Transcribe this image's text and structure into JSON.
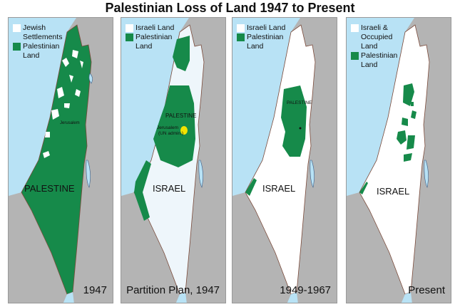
{
  "title": "Palestinian Loss of Land 1947 to Present",
  "colors": {
    "sea": "#b8e2f5",
    "neighbor": "#b4b4b4",
    "green": "#168a4a",
    "white": "#ffffff",
    "israel_1947_plan": "#eef6fb",
    "jerusalem": "#f2e200"
  },
  "panels": [
    {
      "legend": [
        "Jewish Settlements",
        "Palestinian Land"
      ],
      "year": "1947",
      "labels": {
        "country": "PALESTINE",
        "city": "Jerusalem"
      }
    },
    {
      "legend": [
        "Israeli Land",
        "Palestinian Land"
      ],
      "year": "Partition Plan, 1947",
      "labels": {
        "country": "ISRAEL",
        "region": "PALESTINE",
        "city": "Jerusalem",
        "city_note": "(UN admin.)"
      }
    },
    {
      "legend": [
        "Israeli Land",
        "Palestinian Land"
      ],
      "year": "1949-1967",
      "labels": {
        "country": "ISRAEL",
        "region": "PALESTINE"
      }
    },
    {
      "legend": [
        "Israeli & Occupied Land",
        "Palestinian Land"
      ],
      "year": "Present",
      "labels": {
        "country": "ISRAEL"
      }
    }
  ]
}
